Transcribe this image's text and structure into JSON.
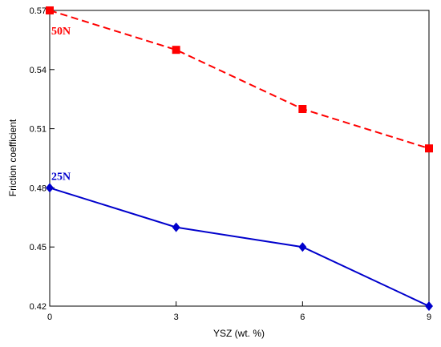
{
  "chart_data": {
    "type": "line",
    "x": [
      0,
      3,
      6,
      9
    ],
    "series": [
      {
        "name": "50N",
        "values": [
          0.57,
          0.55,
          0.52,
          0.5
        ],
        "color": "#ff0000",
        "marker": "square",
        "line": "dashed"
      },
      {
        "name": "25N",
        "values": [
          0.48,
          0.46,
          0.45,
          0.42
        ],
        "color": "#0000cc",
        "marker": "diamond",
        "line": "solid"
      }
    ],
    "xlabel": "YSZ (wt. %)",
    "ylabel": "Friction coefficient",
    "xlim": [
      0,
      9
    ],
    "ylim": [
      0.42,
      0.57
    ],
    "xticks": [
      "0",
      "3",
      "6",
      "9"
    ],
    "yticks": [
      "0.42",
      "0.45",
      "0.48",
      "0.51",
      "0.54",
      "0.57"
    ],
    "grid": false,
    "legend": "inline labels"
  }
}
